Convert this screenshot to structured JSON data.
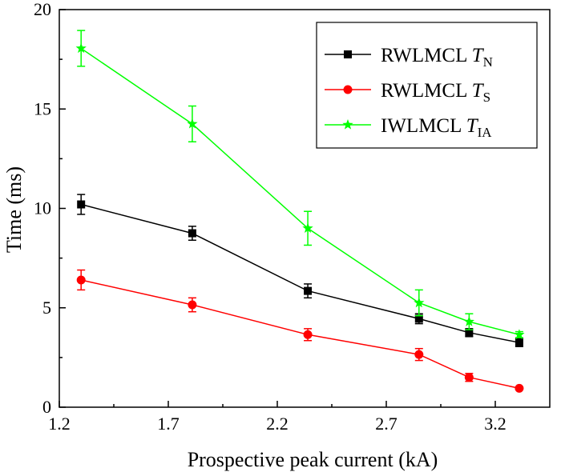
{
  "chart_data": {
    "type": "line",
    "title": "",
    "xlabel": "Prospective peak current (kA)",
    "ylabel": "Time (ms)",
    "xlim": [
      1.2,
      3.45
    ],
    "ylim": [
      0,
      20
    ],
    "xticks": [
      "1.2",
      "1.7",
      "2.2",
      "2.7",
      "3.2"
    ],
    "yticks": [
      "0",
      "5",
      "10",
      "15",
      "20"
    ],
    "grid": false,
    "legend_position": "top-right",
    "x": [
      1.3,
      1.81,
      2.34,
      2.85,
      3.08,
      3.31
    ],
    "series": [
      {
        "name": "RWLMCL T",
        "name_main": "RWLMCL ",
        "name_italic": "T",
        "name_sub": "N",
        "color": "#000000",
        "marker": "square",
        "values": [
          10.2,
          8.75,
          5.85,
          4.45,
          3.75,
          3.25
        ],
        "errors": [
          0.5,
          0.35,
          0.35,
          0.25,
          0.2,
          0.2
        ]
      },
      {
        "name": "RWLMCL T",
        "name_main": "RWLMCL ",
        "name_italic": "T",
        "name_sub": "S",
        "color": "#ff0000",
        "marker": "circle",
        "values": [
          6.4,
          5.15,
          3.65,
          2.65,
          1.5,
          0.95
        ],
        "errors": [
          0.5,
          0.35,
          0.3,
          0.3,
          0.2,
          0.05
        ]
      },
      {
        "name": "IWLMCL T",
        "name_main": "IWLMCL ",
        "name_italic": "T",
        "name_sub": "IA",
        "color": "#00ff00",
        "marker": "star",
        "values": [
          18.05,
          14.25,
          9.0,
          5.25,
          4.3,
          3.65
        ],
        "errors": [
          0.9,
          0.9,
          0.85,
          0.65,
          0.4,
          0.15
        ]
      }
    ]
  }
}
